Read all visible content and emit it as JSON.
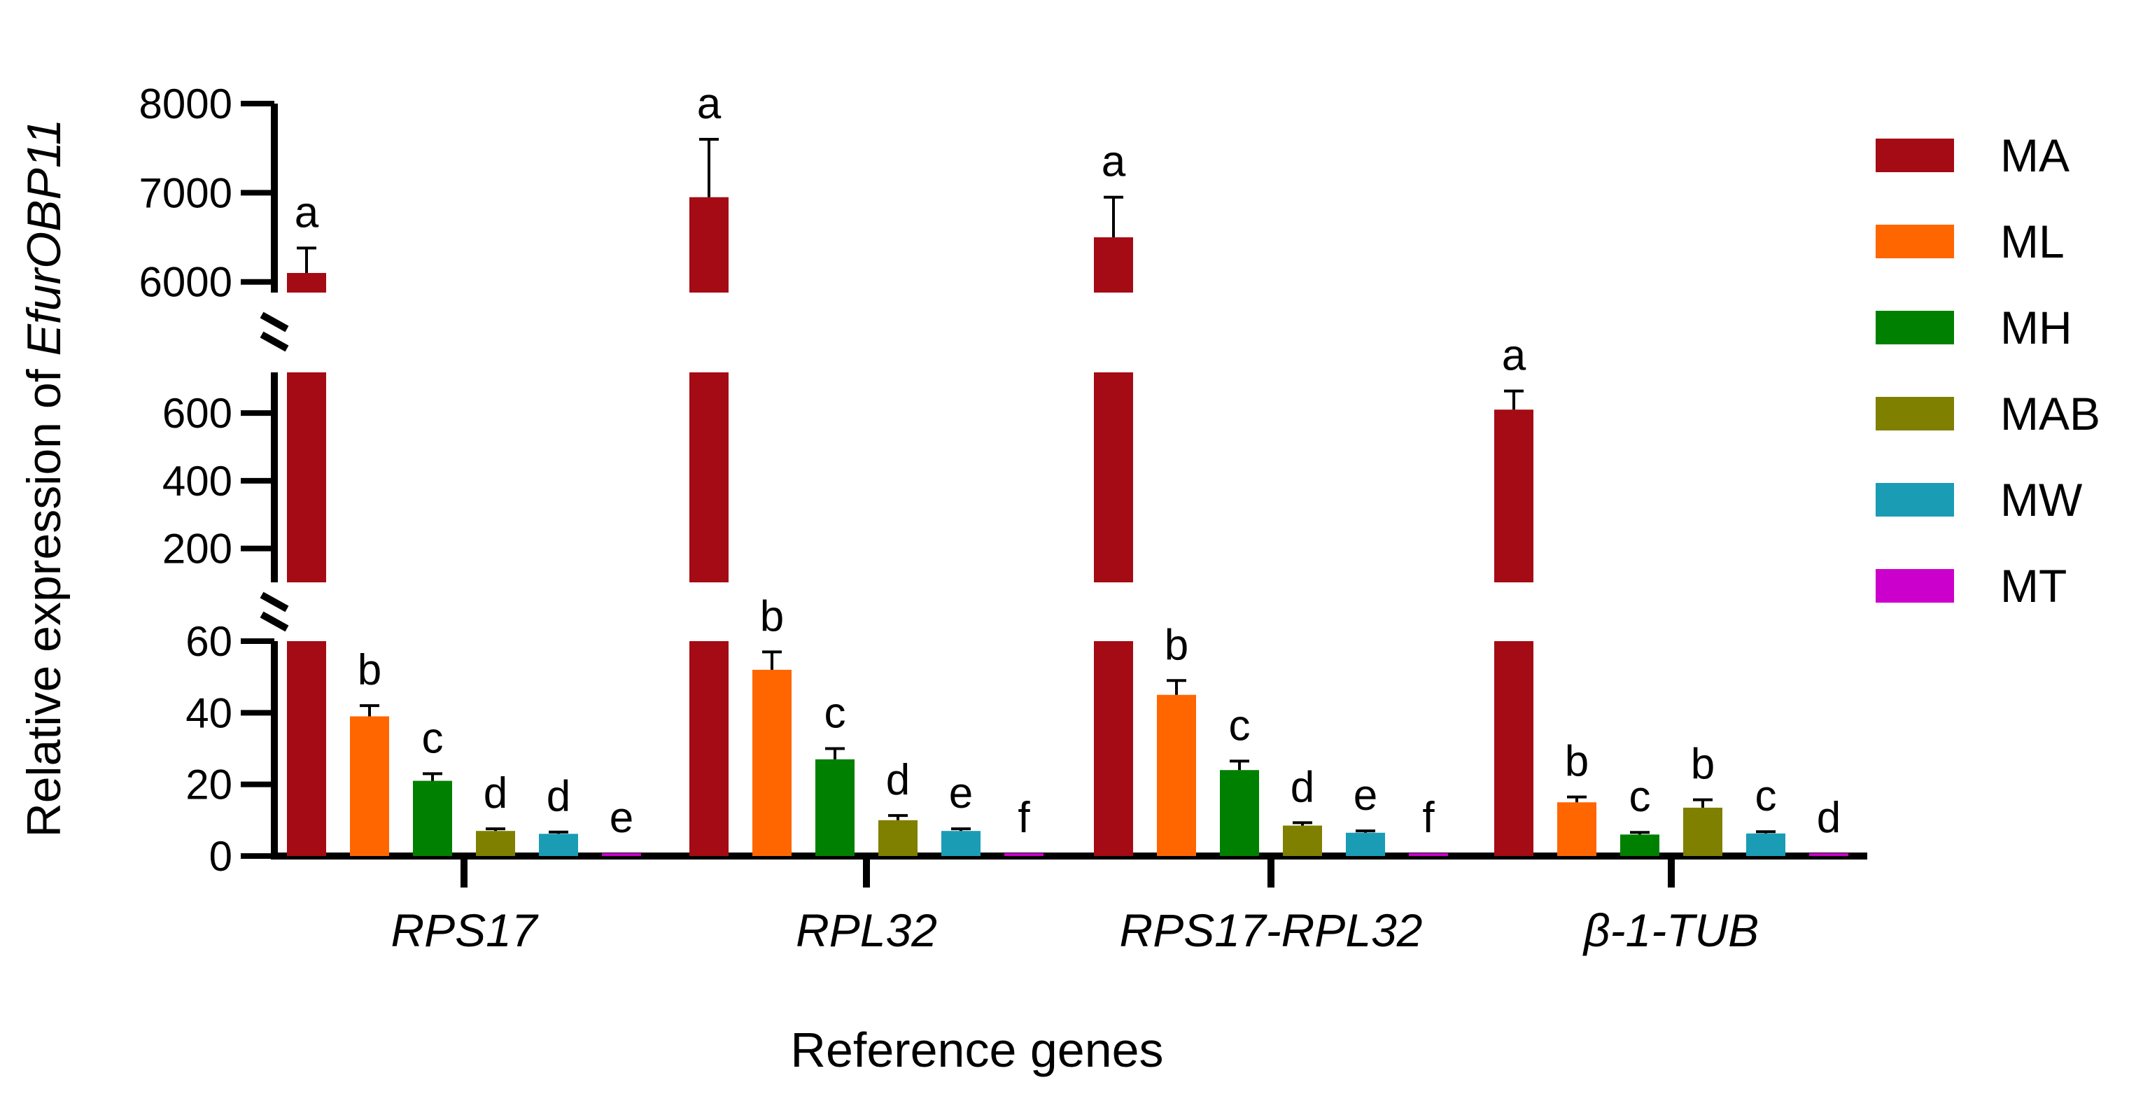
{
  "chart_data": {
    "type": "bar",
    "title": "",
    "xlabel": "Reference genes",
    "ylabel_prefix": "Relative expression of ",
    "ylabel_gene": "EfurOBP11",
    "y_segments": [
      {
        "range": [
          0,
          60
        ],
        "ticks": [
          "0",
          "20",
          "40",
          "60"
        ],
        "tick_values": [
          0,
          20,
          40,
          60
        ]
      },
      {
        "range": [
          100,
          720
        ],
        "ticks": [
          "200",
          "400",
          "600"
        ],
        "tick_values": [
          200,
          400,
          600
        ]
      },
      {
        "range": [
          5880,
          8000
        ],
        "ticks": [
          "6000",
          "7000",
          "8000"
        ],
        "tick_values": [
          6000,
          7000,
          8000
        ]
      }
    ],
    "categories": [
      "RPS17",
      "RPL32",
      "RPS17-RPL32",
      "β-1-TUB"
    ],
    "series": [
      {
        "name": "MA",
        "color": "#a50b14",
        "values": [
          6100,
          6950,
          6500,
          610
        ],
        "errors": [
          280,
          650,
          450,
          55
        ],
        "letters": [
          "a",
          "a",
          "a",
          "a"
        ]
      },
      {
        "name": "ML",
        "color": "#ff6600",
        "values": [
          39,
          52,
          45,
          15
        ],
        "errors": [
          3,
          5,
          4,
          1.5
        ],
        "letters": [
          "b",
          "b",
          "b",
          "b"
        ]
      },
      {
        "name": "MH",
        "color": "#008000",
        "values": [
          21,
          27,
          24,
          6
        ],
        "errors": [
          2,
          3,
          2.5,
          0.6
        ],
        "letters": [
          "c",
          "c",
          "c",
          "c"
        ]
      },
      {
        "name": "MAB",
        "color": "#7f7f00",
        "values": [
          7,
          10,
          8.5,
          13.5
        ],
        "errors": [
          0.6,
          1.3,
          0.8,
          2.2
        ],
        "letters": [
          "d",
          "d",
          "d",
          "b"
        ]
      },
      {
        "name": "MW",
        "color": "#1a9cb5",
        "values": [
          6.2,
          7,
          6.5,
          6.3
        ],
        "errors": [
          0.5,
          0.6,
          0.5,
          0.5
        ],
        "letters": [
          "d",
          "e",
          "e",
          "c"
        ]
      },
      {
        "name": "MT",
        "color": "#cc00cc",
        "values": [
          0.8,
          0.8,
          0.8,
          0.8
        ],
        "errors": [
          0,
          0,
          0,
          0
        ],
        "letters": [
          "e",
          "f",
          "f",
          "d"
        ]
      }
    ],
    "legend": {
      "position": "right",
      "entries": [
        "MA",
        "ML",
        "MH",
        "MAB",
        "MW",
        "MT"
      ]
    }
  }
}
